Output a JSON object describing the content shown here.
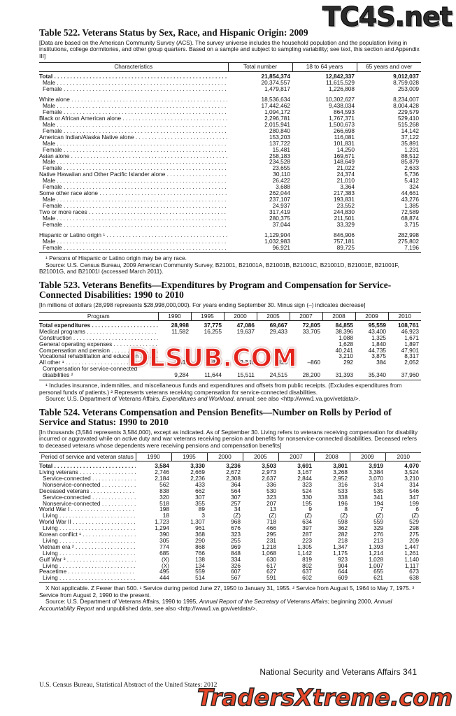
{
  "watermarks": {
    "top": "TC4S.net",
    "middle": "DLSUB.COM",
    "bottom": "TradersXtreme.com"
  },
  "table522": {
    "title": "Table 522. Veterans Status by Sex, Race, and Hispanic Origin: 2009",
    "headnote": "[Data are based on the American Community Survey (ACS). The survey universe includes the household population and the population living in institutions, college dormitories, and other group quarters. Based on a sample and subject to sampling variability; see text, this section and Appendix III]",
    "columns": [
      "Characteristics",
      "Total number",
      "18 to 64 years",
      "65 years and over"
    ],
    "sections": [
      [
        {
          "label": "Total",
          "values": [
            "21,854,374",
            "12,842,337",
            "9,012,037"
          ],
          "sub": [
            {
              "label": "Male",
              "values": [
                "20,374,557",
                "11,615,529",
                "8,759,028"
              ]
            },
            {
              "label": "Female",
              "values": [
                "1,479,817",
                "1,226,808",
                "253,009"
              ]
            }
          ]
        }
      ],
      [
        {
          "label": "White alone",
          "values": [
            "18,536,634",
            "10,302,627",
            "8,234,007"
          ],
          "sub": [
            {
              "label": "Male",
              "values": [
                "17,442,462",
                "9,438,034",
                "8,004,428"
              ]
            },
            {
              "label": "Female",
              "values": [
                "1,094,172",
                "864,593",
                "229,579"
              ]
            }
          ]
        },
        {
          "label": "Black or African American alone",
          "values": [
            "2,296,781",
            "1,767,371",
            "529,410"
          ],
          "sub": [
            {
              "label": "Male",
              "values": [
                "2,015,941",
                "1,500,673",
                "515,268"
              ]
            },
            {
              "label": "Female",
              "values": [
                "280,840",
                "266,698",
                "14,142"
              ]
            }
          ]
        },
        {
          "label": "American Indian/Alaska Native alone",
          "values": [
            "153,203",
            "116,081",
            "37,122"
          ],
          "sub": [
            {
              "label": "Male",
              "values": [
                "137,722",
                "101,831",
                "35,891"
              ]
            },
            {
              "label": "Female",
              "values": [
                "15,481",
                "14,250",
                "1,231"
              ]
            }
          ]
        },
        {
          "label": "Asian alone",
          "values": [
            "258,183",
            "169,671",
            "88,512"
          ],
          "sub": [
            {
              "label": "Male",
              "values": [
                "234,528",
                "148,649",
                "85,879"
              ]
            },
            {
              "label": "Female",
              "values": [
                "23,655",
                "21,022",
                "2,633"
              ]
            }
          ]
        },
        {
          "label": "Native Hawaiian and Other Pacific Islander alone",
          "values": [
            "30,110",
            "24,374",
            "5,736"
          ],
          "sub": [
            {
              "label": "Male",
              "values": [
                "26,422",
                "21,010",
                "5,412"
              ]
            },
            {
              "label": "Female",
              "values": [
                "3,688",
                "3,364",
                "324"
              ]
            }
          ]
        },
        {
          "label": "Some other race alone",
          "values": [
            "262,044",
            "217,383",
            "44,661"
          ],
          "sub": [
            {
              "label": "Male",
              "values": [
                "237,107",
                "193,831",
                "43,276"
              ]
            },
            {
              "label": "Female",
              "values": [
                "24,937",
                "23,552",
                "1,385"
              ]
            }
          ]
        },
        {
          "label": "Two or more races",
          "values": [
            "317,419",
            "244,830",
            "72,589"
          ],
          "sub": [
            {
              "label": "Male",
              "values": [
                "280,375",
                "211,501",
                "68,874"
              ]
            },
            {
              "label": "Female",
              "values": [
                "37,044",
                "33,329",
                "3,715"
              ]
            }
          ]
        }
      ],
      [
        {
          "label": "Hispanic or Latino origin ¹",
          "values": [
            "1,129,904",
            "846,906",
            "282,998"
          ],
          "sub": [
            {
              "label": "Male",
              "values": [
                "1,032,983",
                "757,181",
                "275,802"
              ]
            },
            {
              "label": "Female",
              "values": [
                "96,921",
                "89,725",
                "7,196"
              ]
            }
          ]
        }
      ]
    ],
    "footnotes": [
      "¹ Persons of Hispanic or Latino origin may be any race."
    ],
    "source": [
      "Source: U.S. Census Bureau, 2009 American Community Survey, B21001, B21001A, B21001B, B21001C, B21001D, B21001E, B21001F, B21001G, and B21001I (accessed March 2011)."
    ]
  },
  "table523": {
    "title": "Table 523. Veterans Benefits—Expenditures by Program and Compensation for Service-Connected Disabilities: 1990 to 2010",
    "headnote": "[In millions of dollars (28,998 represents $28,998,000,000). For years ending  September 30. Minus sign (–) indicates decrease]",
    "columns": [
      "Program",
      "1990",
      "1995",
      "2000",
      "2005",
      "2007",
      "2008",
      "2009",
      "2010"
    ],
    "rows": [
      {
        "label": "Total expenditures",
        "values": [
          "28,998",
          "37,775",
          "47,086",
          "69,667",
          "72,805",
          "84,855",
          "95,559",
          "108,761"
        ]
      },
      {
        "label": "Medical programs",
        "values": [
          "11,582",
          "16,255",
          "19,637",
          "29,433",
          "33,705",
          "38,396",
          "43,400",
          "46,923"
        ]
      },
      {
        "label": "Construction",
        "values": [
          null,
          null,
          null,
          null,
          null,
          "1,088",
          "1,325",
          "1,671"
        ]
      },
      {
        "label": "General operating expenses",
        "values": [
          null,
          null,
          null,
          null,
          null,
          "1,628",
          "1,840",
          "1,897"
        ]
      },
      {
        "label": "Compensation and pension",
        "values": [
          null,
          null,
          null,
          null,
          null,
          "40,241",
          "44,735",
          "47,901"
        ]
      },
      {
        "label": "Vocational rehabilitation and education",
        "values": [
          null,
          null,
          null,
          null,
          null,
          "3,210",
          "3,875",
          "8,317"
        ]
      },
      {
        "label": "All other ¹",
        "values": [
          "818",
          "844",
          "2,345",
          "826",
          "–860",
          "292",
          "384",
          "2,052"
        ]
      },
      {
        "label": "Compensation for service-connected disabilities ²",
        "values": [
          "9,284",
          "11,644",
          "15,511",
          "24,515",
          "28,200",
          "31,393",
          "35,340",
          "37,960"
        ]
      }
    ],
    "footnotes": [
      "¹ Includes insurance, indemnities, and miscellaneous funds and expenditures and offsets from public receipts. (Excludes expenditures from personal funds of patients.) ² Represents veterans receiving compensation for service-connected disabilities."
    ],
    "source": [
      "Source: U.S. Department of Veterans Affairs, ",
      "Expenditures and Workload",
      ", annual; see also <http://www1.va.gov/vetdata/>."
    ]
  },
  "table524": {
    "title": "Table 524. Veterans Compensation and Pension Benefits—Number on Rolls by Period of Service and Status: 1990 to 2010",
    "headnote": "[In thousands (3,584 represents 3,584,000), except as indicated. As of September 30. Living refers to veterans receiving compensation for disability incurred or aggravated while on active duty and war veterans receiving pension and benefits for nonservice-connected disabilities. Deceased refers to deceased veterans whose dependents were receiving pensions and compensation benefits]",
    "columns": [
      "Period of service and veteran status",
      "1990",
      "1995",
      "2000",
      "2005",
      "2007",
      "2008",
      "2009",
      "2010"
    ],
    "rows": [
      {
        "label": "Total",
        "values": [
          "3,584",
          "3,330",
          "3,236",
          "3,503",
          "3,691",
          "3,801",
          "3,919",
          "4,070"
        ]
      },
      {
        "label": "Living veterans",
        "values": [
          "2,746",
          "2,669",
          "2,672",
          "2,973",
          "3,167",
          "3,268",
          "3,384",
          "3,524"
        ],
        "sub": [
          {
            "label": "Service-connected",
            "values": [
              "2,184",
              "2,236",
              "2,308",
              "2,637",
              "2,844",
              "2,952",
              "3,070",
              "3,210"
            ]
          },
          {
            "label": "Nonservice-connected",
            "values": [
              "562",
              "433",
              "364",
              "336",
              "323",
              "316",
              "314",
              "314"
            ]
          }
        ]
      },
      {
        "label": "Deceased veterans",
        "values": [
          "838",
          "662",
          "564",
          "530",
          "524",
          "533",
          "535",
          "546"
        ],
        "sub": [
          {
            "label": "Service-connected",
            "values": [
              "320",
              "307",
              "307",
              "323",
              "330",
              "338",
              "341",
              "347"
            ]
          },
          {
            "label": "Nonservice-connected",
            "values": [
              "518",
              "355",
              "257",
              "207",
              "195",
              "196",
              "194",
              "199"
            ]
          }
        ]
      },
      {
        "label": "World War I",
        "values": [
          "198",
          "89",
          "34",
          "13",
          "9",
          "8",
          "7",
          "6"
        ],
        "sub": [
          {
            "label": "Living",
            "values": [
              "18",
              "3",
              "(Z)",
              "(Z)",
              "(Z)",
              "(Z)",
              "(Z)",
              "(Z)"
            ]
          }
        ]
      },
      {
        "label": "World War II",
        "values": [
          "1,723",
          "1,307",
          "968",
          "718",
          "634",
          "598",
          "559",
          "529"
        ],
        "sub": [
          {
            "label": "Living",
            "values": [
              "1,294",
              "961",
              "676",
              "466",
              "397",
              "362",
              "329",
              "298"
            ]
          }
        ]
      },
      {
        "label": "Korean conflict ¹",
        "values": [
          "390",
          "368",
          "323",
          "295",
          "287",
          "282",
          "276",
          "275"
        ],
        "sub": [
          {
            "label": "Living",
            "values": [
              "305",
              "290",
              "255",
              "231",
              "223",
              "218",
              "213",
              "209"
            ]
          }
        ]
      },
      {
        "label": "Vietnam era ²",
        "values": [
          "774",
          "868",
          "969",
          "1,218",
          "1,305",
          "1,347",
          "1,393",
          "1,447"
        ],
        "sub": [
          {
            "label": "Living",
            "values": [
              "685",
              "766",
              "848",
              "1,068",
              "1,142",
              "1,175",
              "1,214",
              "1,261"
            ]
          }
        ]
      },
      {
        "label": "Gulf War ³",
        "values": [
          "(X)",
          "138",
          "334",
          "630",
          "819",
          "923",
          "1,028",
          "1,140"
        ],
        "sub": [
          {
            "label": "Living",
            "values": [
              "(X)",
              "134",
              "326",
              "617",
              "802",
              "904",
              "1,007",
              "1,117"
            ]
          }
        ]
      },
      {
        "label": "Peacetime",
        "values": [
          "495",
          "559",
          "607",
          "627",
          "637",
          "644",
          "655",
          "673"
        ],
        "sub": [
          {
            "label": "Living",
            "values": [
              "444",
              "514",
              "567",
              "591",
              "602",
              "609",
              "621",
              "638"
            ]
          }
        ]
      }
    ],
    "footnotes": [
      "X Not applicable. Z Fewer than 500. ¹ Service during period June 27, 1950 to January 31, 1955. ² Service from August 5, 1964 to May 7, 1975. ³ Service from August 2, 1990 to the present."
    ],
    "source": [
      "Source: U.S. Department of Veterans Affairs, 1990 to 1995, ",
      "Annual Report of the Secretary of Veterans Affairs",
      "; beginning 2000, ",
      "Annual Accountability Report",
      " and unpublished data, see also <http://www1.va.gov/vetdata/>."
    ]
  },
  "footer": {
    "section": "National Security and Veterans Affairs  341",
    "publisher": "U.S. Census Bureau, Statistical Abstract of the United States: 2012"
  }
}
